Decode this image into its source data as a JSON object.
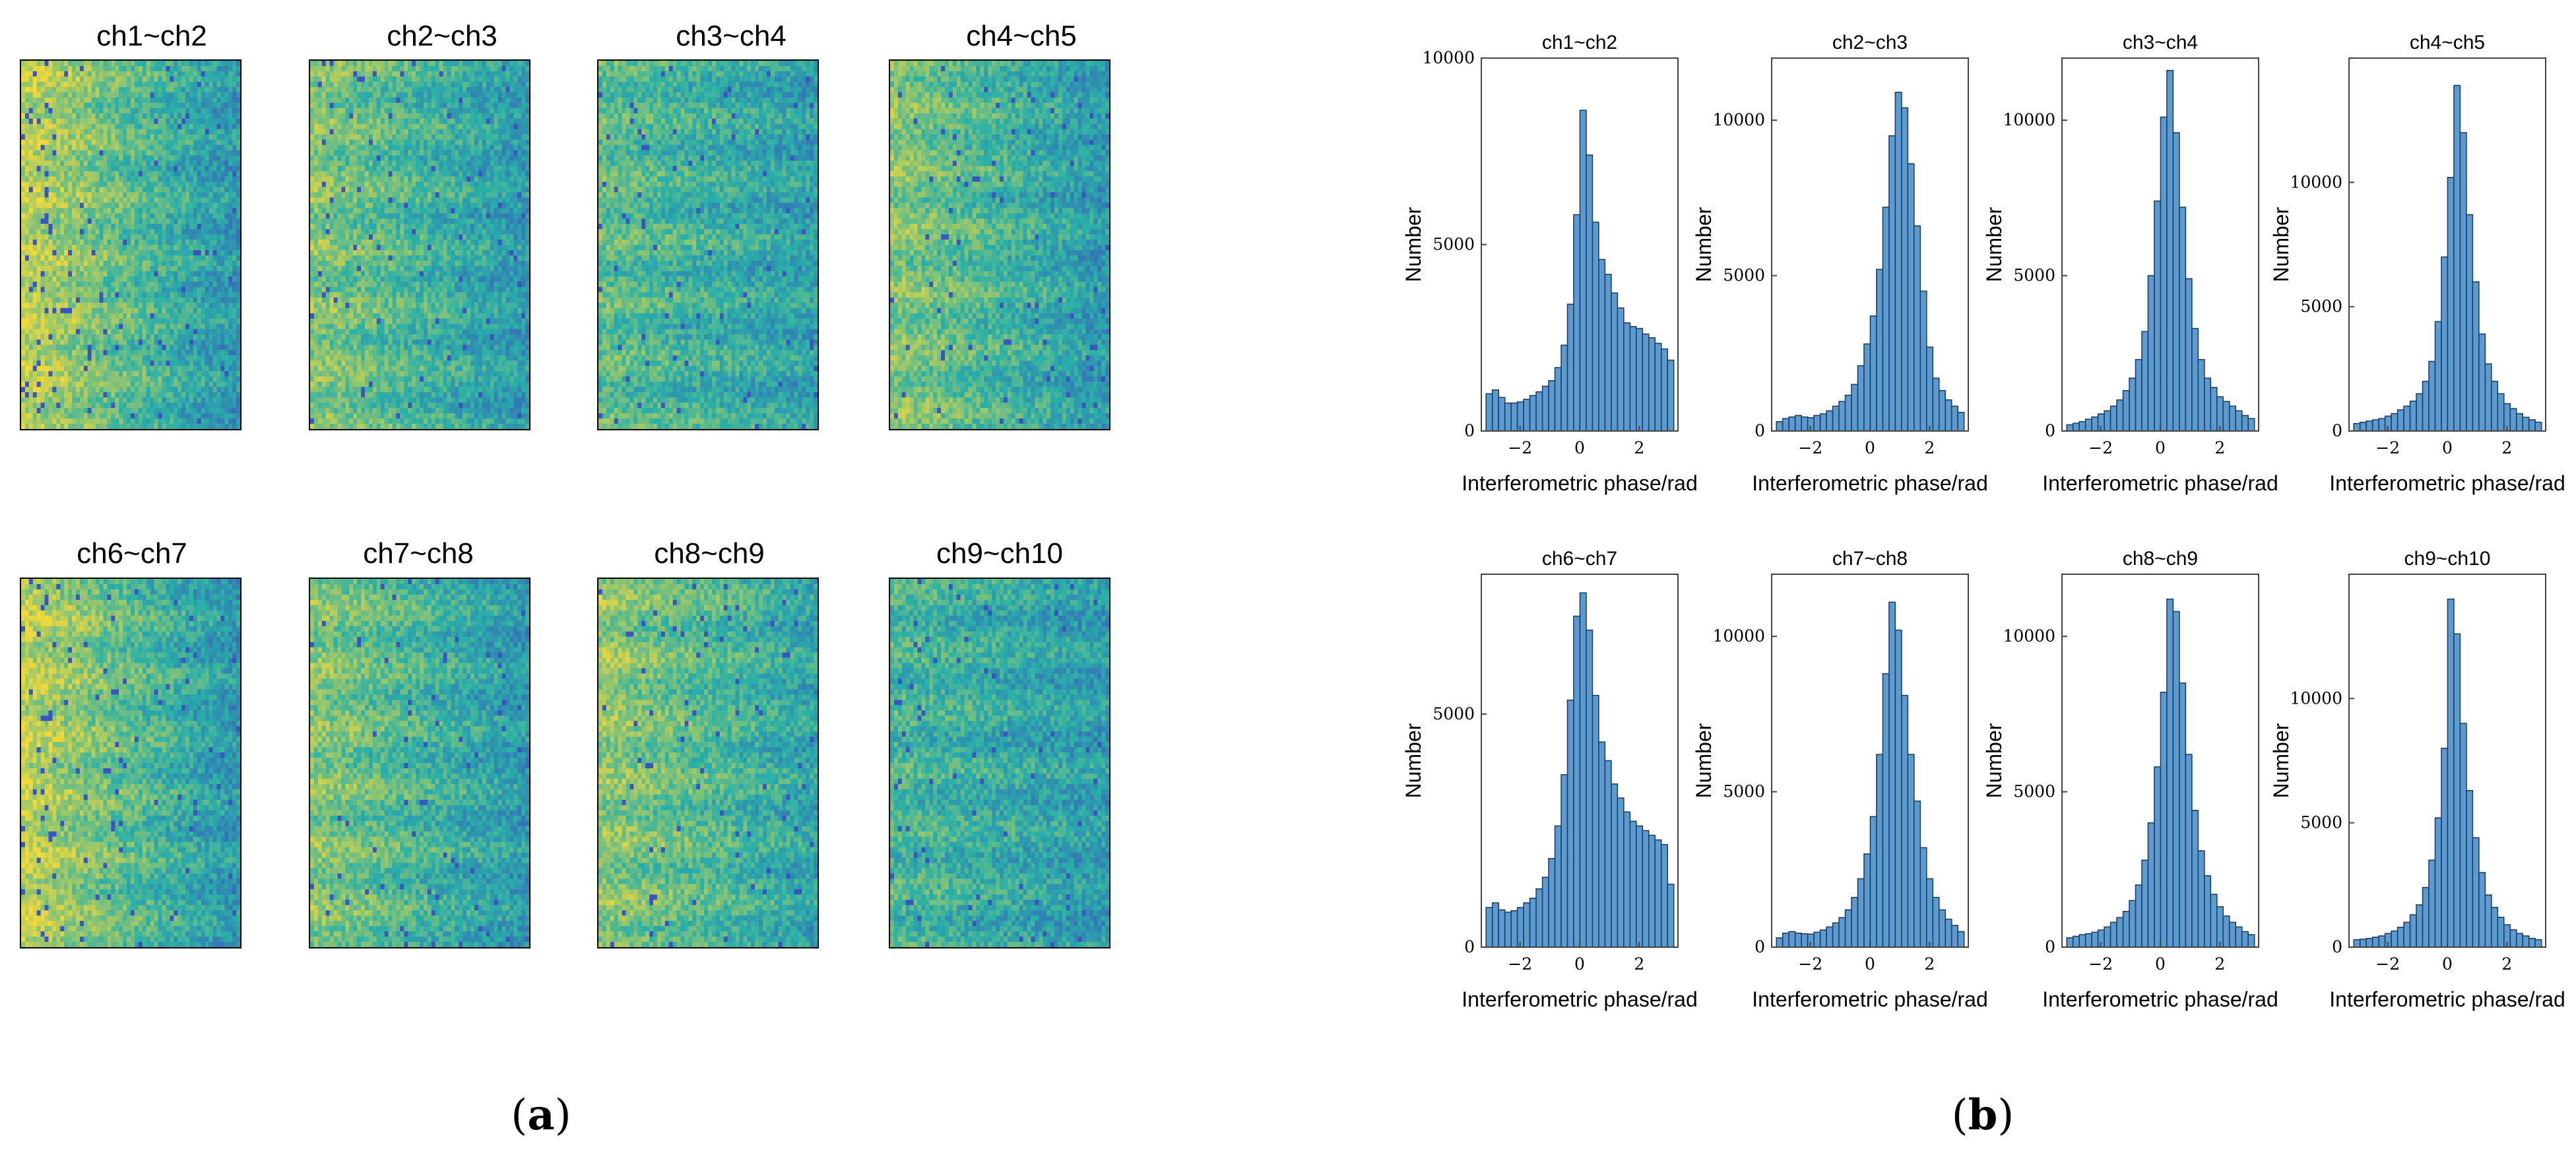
{
  "panel_labels": {
    "a": "a",
    "b": "b",
    "open": "(",
    "close": ")"
  },
  "colors": {
    "bar_fill": "#5b9bd0",
    "bar_edge": "#1f3f66",
    "viridis_low": "#3b4cc0",
    "viridis_mid": "#2ab0a8",
    "viridis_high": "#f2d93a"
  },
  "phase_maps": {
    "titles": [
      "ch1~ch2",
      "ch2~ch3",
      "ch3~ch4",
      "ch4~ch5",
      "ch6~ch7",
      "ch7~ch8",
      "ch8~ch9",
      "ch9~ch10"
    ]
  },
  "chart_data": [
    {
      "type": "bar",
      "title": "ch1~ch2",
      "xlabel": "Interferometric phase/rad",
      "ylabel": "Number",
      "xlim": [
        -3.3,
        3.3
      ],
      "ylim": [
        0,
        10000
      ],
      "xticks": [
        -2,
        0,
        2
      ],
      "yticks": [
        0,
        5000,
        10000
      ],
      "bin_edges": [
        -3.14,
        -2.93,
        -2.72,
        -2.51,
        -2.3,
        -2.09,
        -1.88,
        -1.67,
        -1.46,
        -1.25,
        -1.04,
        -0.83,
        -0.62,
        -0.41,
        -0.2,
        0.01,
        0.22,
        0.43,
        0.64,
        0.85,
        1.06,
        1.27,
        1.48,
        1.69,
        1.9,
        2.11,
        2.32,
        2.53,
        2.74,
        2.95,
        3.16
      ],
      "values": [
        1000,
        1100,
        900,
        750,
        750,
        780,
        850,
        950,
        1050,
        1200,
        1350,
        1700,
        2300,
        3400,
        5800,
        8600,
        7400,
        5600,
        4600,
        4200,
        3700,
        3300,
        2900,
        2800,
        2750,
        2600,
        2500,
        2350,
        2200,
        1900
      ]
    },
    {
      "type": "bar",
      "title": "ch2~ch3",
      "xlabel": "Interferometric phase/rad",
      "ylabel": "Number",
      "xlim": [
        -3.3,
        3.3
      ],
      "ylim": [
        0,
        12000
      ],
      "xticks": [
        -2,
        0,
        2
      ],
      "yticks": [
        0,
        5000,
        10000
      ],
      "bin_edges": [
        -3.14,
        -2.93,
        -2.72,
        -2.51,
        -2.3,
        -2.09,
        -1.88,
        -1.67,
        -1.46,
        -1.25,
        -1.04,
        -0.83,
        -0.62,
        -0.41,
        -0.2,
        0.01,
        0.22,
        0.43,
        0.64,
        0.85,
        1.06,
        1.27,
        1.48,
        1.69,
        1.9,
        2.11,
        2.32,
        2.53,
        2.74,
        2.95,
        3.16
      ],
      "values": [
        300,
        400,
        450,
        500,
        450,
        430,
        500,
        550,
        650,
        800,
        950,
        1150,
        1500,
        2100,
        2800,
        3700,
        5200,
        7200,
        9500,
        10900,
        10400,
        8600,
        6600,
        4500,
        2700,
        1700,
        1300,
        1000,
        800,
        600
      ]
    },
    {
      "type": "bar",
      "title": "ch3~ch4",
      "xlabel": "Interferometric phase/rad",
      "ylabel": "Number",
      "xlim": [
        -3.3,
        3.3
      ],
      "ylim": [
        0,
        12000
      ],
      "xticks": [
        -2,
        0,
        2
      ],
      "yticks": [
        0,
        5000,
        10000
      ],
      "bin_edges": [
        -3.14,
        -2.93,
        -2.72,
        -2.51,
        -2.3,
        -2.09,
        -1.88,
        -1.67,
        -1.46,
        -1.25,
        -1.04,
        -0.83,
        -0.62,
        -0.41,
        -0.2,
        0.01,
        0.22,
        0.43,
        0.64,
        0.85,
        1.06,
        1.27,
        1.48,
        1.69,
        1.9,
        2.11,
        2.32,
        2.53,
        2.74,
        2.95,
        3.16
      ],
      "values": [
        200,
        250,
        300,
        380,
        450,
        550,
        650,
        800,
        1000,
        1300,
        1700,
        2300,
        3200,
        5000,
        7400,
        10100,
        11600,
        9600,
        7200,
        4900,
        3300,
        2300,
        1700,
        1400,
        1100,
        950,
        800,
        650,
        500,
        400
      ]
    },
    {
      "type": "bar",
      "title": "ch4~ch5",
      "xlabel": "Interferometric phase/rad",
      "ylabel": "Number",
      "xlim": [
        -3.3,
        3.3
      ],
      "ylim": [
        0,
        15000
      ],
      "xticks": [
        -2,
        0,
        2
      ],
      "yticks": [
        0,
        5000,
        10000
      ],
      "bin_edges": [
        -3.14,
        -2.93,
        -2.72,
        -2.51,
        -2.3,
        -2.09,
        -1.88,
        -1.67,
        -1.46,
        -1.25,
        -1.04,
        -0.83,
        -0.62,
        -0.41,
        -0.2,
        0.01,
        0.22,
        0.43,
        0.64,
        0.85,
        1.06,
        1.27,
        1.48,
        1.69,
        1.9,
        2.11,
        2.32,
        2.53,
        2.74,
        2.95,
        3.16
      ],
      "values": [
        300,
        350,
        400,
        450,
        500,
        600,
        700,
        850,
        1000,
        1200,
        1500,
        2000,
        2800,
        4400,
        7000,
        10200,
        13900,
        12000,
        8700,
        6000,
        3900,
        2700,
        2000,
        1500,
        1100,
        900,
        700,
        550,
        450,
        350
      ]
    },
    {
      "type": "bar",
      "title": "ch6~ch7",
      "xlabel": "Interferometric phase/rad",
      "ylabel": "Number",
      "xlim": [
        -3.3,
        3.3
      ],
      "ylim": [
        0,
        8000
      ],
      "xticks": [
        -2,
        0,
        2
      ],
      "yticks": [
        0,
        5000
      ],
      "bin_edges": [
        -3.14,
        -2.93,
        -2.72,
        -2.51,
        -2.3,
        -2.09,
        -1.88,
        -1.67,
        -1.46,
        -1.25,
        -1.04,
        -0.83,
        -0.62,
        -0.41,
        -0.2,
        0.01,
        0.22,
        0.43,
        0.64,
        0.85,
        1.06,
        1.27,
        1.48,
        1.69,
        1.9,
        2.11,
        2.32,
        2.53,
        2.74,
        2.95,
        3.16
      ],
      "values": [
        850,
        950,
        800,
        750,
        780,
        850,
        950,
        1050,
        1250,
        1500,
        1900,
        2600,
        3700,
        5300,
        7100,
        7600,
        6800,
        5400,
        4400,
        4000,
        3500,
        3200,
        2900,
        2700,
        2600,
        2500,
        2400,
        2300,
        2200,
        1350
      ]
    },
    {
      "type": "bar",
      "title": "ch7~ch8",
      "xlabel": "Interferometric phase/rad",
      "ylabel": "Number",
      "xlim": [
        -3.3,
        3.3
      ],
      "ylim": [
        0,
        12000
      ],
      "xticks": [
        -2,
        0,
        2
      ],
      "yticks": [
        0,
        5000,
        10000
      ],
      "bin_edges": [
        -3.14,
        -2.93,
        -2.72,
        -2.51,
        -2.3,
        -2.09,
        -1.88,
        -1.67,
        -1.46,
        -1.25,
        -1.04,
        -0.83,
        -0.62,
        -0.41,
        -0.2,
        0.01,
        0.22,
        0.43,
        0.64,
        0.85,
        1.06,
        1.27,
        1.48,
        1.69,
        1.9,
        2.11,
        2.32,
        2.53,
        2.74,
        2.95,
        3.16
      ],
      "values": [
        300,
        450,
        500,
        450,
        430,
        420,
        480,
        550,
        650,
        780,
        950,
        1200,
        1600,
        2200,
        3000,
        4200,
        6200,
        8800,
        11100,
        10200,
        8100,
        6200,
        4700,
        3200,
        2200,
        1600,
        1200,
        900,
        700,
        500
      ]
    },
    {
      "type": "bar",
      "title": "ch8~ch9",
      "xlabel": "Interferometric phase/rad",
      "ylabel": "Number",
      "xlim": [
        -3.3,
        3.3
      ],
      "ylim": [
        0,
        12000
      ],
      "xticks": [
        -2,
        0,
        2
      ],
      "yticks": [
        0,
        5000,
        10000
      ],
      "bin_edges": [
        -3.14,
        -2.93,
        -2.72,
        -2.51,
        -2.3,
        -2.09,
        -1.88,
        -1.67,
        -1.46,
        -1.25,
        -1.04,
        -0.83,
        -0.62,
        -0.41,
        -0.2,
        0.01,
        0.22,
        0.43,
        0.64,
        0.85,
        1.06,
        1.27,
        1.48,
        1.69,
        1.9,
        2.11,
        2.32,
        2.53,
        2.74,
        2.95,
        3.16
      ],
      "values": [
        300,
        350,
        400,
        430,
        480,
        550,
        650,
        800,
        950,
        1150,
        1500,
        2000,
        2800,
        4000,
        5800,
        8200,
        11200,
        10800,
        8500,
        6200,
        4400,
        3100,
        2300,
        1700,
        1300,
        1000,
        800,
        650,
        500,
        400
      ]
    },
    {
      "type": "bar",
      "title": "ch9~ch10",
      "xlabel": "Interferometric phase/rad",
      "ylabel": "Number",
      "xlim": [
        -3.3,
        3.3
      ],
      "ylim": [
        0,
        15000
      ],
      "xticks": [
        -2,
        0,
        2
      ],
      "yticks": [
        0,
        5000,
        10000
      ],
      "bin_edges": [
        -3.14,
        -2.93,
        -2.72,
        -2.51,
        -2.3,
        -2.09,
        -1.88,
        -1.67,
        -1.46,
        -1.25,
        -1.04,
        -0.83,
        -0.62,
        -0.41,
        -0.2,
        0.01,
        0.22,
        0.43,
        0.64,
        0.85,
        1.06,
        1.27,
        1.48,
        1.69,
        1.9,
        2.11,
        2.32,
        2.53,
        2.74,
        2.95,
        3.16
      ],
      "values": [
        300,
        320,
        350,
        400,
        450,
        550,
        650,
        800,
        1000,
        1300,
        1700,
        2400,
        3500,
        5200,
        8000,
        14000,
        12600,
        9000,
        6300,
        4400,
        3000,
        2100,
        1600,
        1200,
        900,
        700,
        550,
        450,
        350,
        300
      ]
    }
  ]
}
